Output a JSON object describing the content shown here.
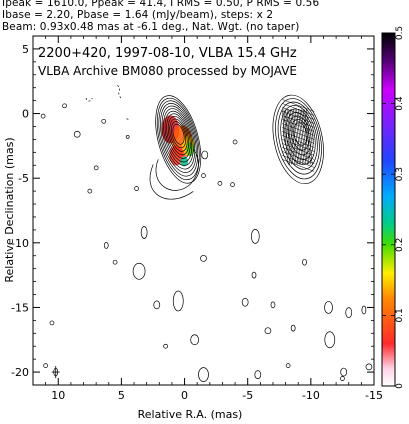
{
  "header": {
    "line1": "Ipeak = 1610.0, Ppeak = 41.4, I RMS = 0.50, P RMS = 0.56",
    "line2": "Ibase = 2.20, Pbase = 1.64 (mJy/beam), steps: x 2",
    "line3": "Beam: 0.93x0.48 mas at -6.1 deg., Nat. Wgt. (no taper)"
  },
  "chart_data": {
    "type": "heatmap",
    "title_line1": "2200+420, 1997-08-10, VLBA 15.4 GHz",
    "title_line2": "VLBA Archive BM080 processed by MOJAVE",
    "xlabel": "Relative R.A. (mas)",
    "ylabel": "Relative Declination (mas)",
    "xlim": [
      12,
      -15
    ],
    "ylim": [
      -21,
      6
    ],
    "x_ticks": [
      10,
      5,
      0,
      -5,
      -10,
      -15
    ],
    "y_ticks": [
      5,
      0,
      -5,
      -10,
      -15,
      -20
    ],
    "colorbar": {
      "range": [
        0,
        0.5
      ],
      "ticks": [
        0,
        0.1,
        0.2,
        0.3,
        0.4,
        0.5
      ]
    },
    "beam": {
      "major_mas": 0.93,
      "minor_mas": 0.48,
      "pa_deg": -6.1,
      "position": [
        10.2,
        -20
      ]
    },
    "main_source": {
      "x": 0.5,
      "y": -2.0
    },
    "inset_source": {
      "x": -9.0,
      "y": -2.0
    },
    "colors": {
      "contour": "#000000",
      "frame": "#000000"
    }
  }
}
